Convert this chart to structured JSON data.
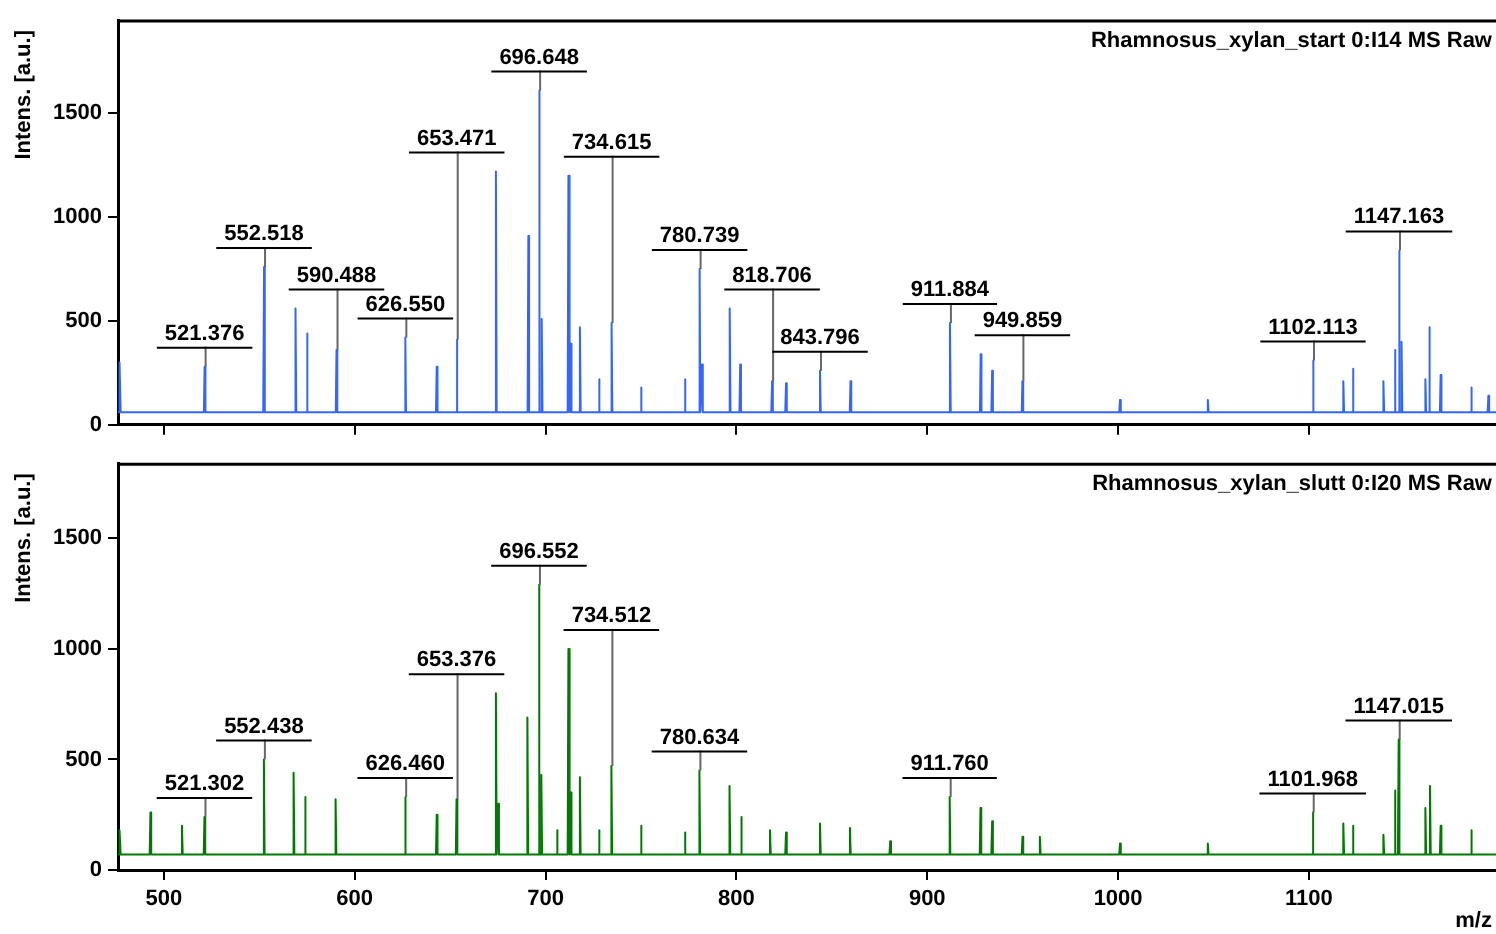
{
  "chart_data": [
    {
      "type": "line",
      "title": "Rhamnosus_xylan_start 0:I14 MS Raw",
      "ylabel": "Intens. [a.u.]",
      "series": [
        {
          "color": "#3366ff",
          "x": [
            476,
            476.6,
            477,
            477.4,
            521,
            521.376,
            521.8,
            552.1,
            552.518,
            552.9,
            568.6,
            569,
            569.4,
            574.6,
            575,
            575.4,
            590.1,
            590.488,
            590.9,
            626.2,
            626.55,
            626.9,
            642.6,
            643,
            643.4,
            653.1,
            653.471,
            653.9,
            673.6,
            674,
            674.4,
            690.6,
            691,
            691.4,
            696.3,
            696.648,
            697,
            697.7,
            698,
            698.4,
            711.6,
            712,
            712.4,
            712.8,
            713.2,
            713.6,
            717.6,
            718,
            718.4,
            727.6,
            728,
            728.4,
            734.2,
            734.615,
            735,
            749.6,
            750,
            750.4,
            772.6,
            773,
            773.4,
            780.4,
            780.739,
            781.1,
            781.6,
            782,
            782.4,
            796.1,
            796.5,
            796.9,
            801.6,
            802,
            802.4,
            818.3,
            818.706,
            819.1,
            825.6,
            826,
            826.4,
            843.4,
            843.796,
            844.2,
            859.4,
            859.8,
            860.2,
            911.5,
            911.884,
            912.3,
            927.6,
            928,
            928.4,
            933.6,
            934,
            934.4,
            949.5,
            949.859,
            950.3,
            1000.6,
            1001,
            1001.4,
            1046.6,
            1047,
            1047.4,
            1101.7,
            1102.113,
            1102.5,
            1117.6,
            1118,
            1118.4,
            1122.6,
            1123,
            1123.4,
            1138.6,
            1139,
            1139.4,
            1144.6,
            1145,
            1145.4,
            1146.8,
            1147.163,
            1147.6,
            1148.1,
            1148.5,
            1148.9,
            1160.6,
            1161,
            1161.4,
            1162.6,
            1163,
            1163.4,
            1168.6,
            1169,
            1169.4,
            1184.6,
            1185,
            1185.4,
            1193.6,
            1194,
            1194.4,
            1198
          ],
          "values": [
            60,
            60,
            300,
            60,
            60,
            280,
            60,
            60,
            760,
            60,
            60,
            560,
            60,
            60,
            440,
            60,
            60,
            360,
            60,
            60,
            420,
            60,
            60,
            280,
            60,
            60,
            410,
            60,
            60,
            1220,
            60,
            60,
            910,
            60,
            60,
            1610,
            60,
            60,
            510,
            60,
            60,
            1200,
            60,
            60,
            390,
            60,
            60,
            470,
            60,
            60,
            220,
            60,
            60,
            490,
            60,
            60,
            180,
            60,
            60,
            220,
            60,
            60,
            750,
            60,
            60,
            290,
            60,
            60,
            560,
            60,
            60,
            290,
            60,
            60,
            210,
            60,
            60,
            200,
            60,
            60,
            260,
            60,
            60,
            210,
            60,
            60,
            490,
            60,
            60,
            340,
            60,
            60,
            260,
            60,
            60,
            210,
            60,
            60,
            120,
            60,
            60,
            120,
            60,
            60,
            310,
            60,
            60,
            210,
            60,
            60,
            270,
            60,
            60,
            210,
            60,
            60,
            360,
            60,
            60,
            840,
            60,
            60,
            400,
            60,
            60,
            220,
            60,
            60,
            470,
            60,
            60,
            240,
            60,
            60,
            180,
            60,
            60,
            140,
            60,
            60
          ]
        }
      ],
      "xlim": [
        476,
        1198
      ],
      "xticks": [
        500,
        600,
        700,
        800,
        900,
        1000,
        1100
      ],
      "ylim": [
        0,
        1950
      ],
      "yticks": [
        0,
        500,
        1000,
        1500
      ],
      "tick_labels": "y",
      "grid": false,
      "legend": false,
      "marker": "none",
      "line_style": "solid",
      "annotations": [
        {
          "text": "521.376",
          "x": 521.376,
          "y": 280
        },
        {
          "text": "552.518",
          "x": 552.518,
          "y": 760
        },
        {
          "text": "590.488",
          "x": 590.488,
          "y": 360
        },
        {
          "text": "626.550",
          "x": 626.55,
          "y": 420
        },
        {
          "text": "653.471",
          "x": 653.471,
          "y": 410
        },
        {
          "text": "696.648",
          "x": 696.648,
          "y": 1610
        },
        {
          "text": "734.615",
          "x": 734.615,
          "y": 490
        },
        {
          "text": "780.739",
          "x": 780.739,
          "y": 750
        },
        {
          "text": "818.706",
          "x": 818.706,
          "y": 210
        },
        {
          "text": "843.796",
          "x": 843.796,
          "y": 260
        },
        {
          "text": "911.884",
          "x": 911.884,
          "y": 490
        },
        {
          "text": "949.859",
          "x": 949.859,
          "y": 210
        },
        {
          "text": "1102.113",
          "x": 1102.113,
          "y": 310
        },
        {
          "text": "1147.163",
          "x": 1147.163,
          "y": 840
        }
      ]
    },
    {
      "type": "line",
      "title": "Rhamnosus_xylan_slutt 0:I20 MS Raw",
      "ylabel": "Intens. [a.u.]",
      "xlabel": "m/z",
      "series": [
        {
          "color": "#007a00",
          "x": [
            476,
            476.6,
            477,
            477.4,
            492.6,
            493,
            493.4,
            509.1,
            509.5,
            509.9,
            520.9,
            521.302,
            521.7,
            552.0,
            552.438,
            552.8,
            567.6,
            568,
            568.4,
            573.6,
            574,
            574.4,
            589.6,
            590,
            590.4,
            626.1,
            626.46,
            626.8,
            642.6,
            643,
            643.4,
            653.0,
            653.376,
            653.8,
            673.6,
            674,
            674.4,
            674.8,
            675.2,
            675.6,
            690.1,
            690.5,
            690.9,
            696.2,
            696.552,
            696.9,
            697.4,
            697.8,
            698.2,
            705.6,
            706,
            706.4,
            711.6,
            712,
            712.4,
            712.8,
            713.2,
            713.6,
            717.6,
            718,
            718.4,
            727.6,
            728,
            728.4,
            734.1,
            734.512,
            734.9,
            749.6,
            750,
            750.4,
            772.6,
            773,
            773.4,
            780.2,
            780.634,
            781,
            796,
            796.4,
            796.8,
            802.1,
            802.5,
            802.9,
            817.2,
            817.6,
            818,
            825.6,
            826,
            826.4,
            843.4,
            843.8,
            844.2,
            859.1,
            859.5,
            859.9,
            880.2,
            880.6,
            881,
            911.4,
            911.76,
            912.1,
            927.5,
            927.9,
            928.3,
            933.6,
            934,
            934.4,
            949.5,
            949.9,
            950.3,
            958.6,
            959,
            959.4,
            1000.6,
            1001,
            1001.4,
            1046.6,
            1047,
            1047.4,
            1101.6,
            1101.968,
            1102.4,
            1117.6,
            1118,
            1118.4,
            1122.6,
            1123,
            1123.4,
            1138.6,
            1139,
            1139.4,
            1144.6,
            1145,
            1145.4,
            1146.6,
            1147.015,
            1147.4,
            1160.6,
            1161,
            1161.4,
            1163,
            1163.4,
            1163.8,
            1168.6,
            1169,
            1169.4,
            1184.6,
            1185,
            1185.4,
            1198
          ],
          "values": [
            70,
            70,
            180,
            70,
            70,
            260,
            70,
            70,
            200,
            70,
            70,
            240,
            70,
            70,
            500,
            70,
            70,
            440,
            70,
            70,
            330,
            70,
            70,
            320,
            70,
            70,
            330,
            70,
            70,
            250,
            70,
            70,
            320,
            70,
            70,
            800,
            70,
            70,
            300,
            70,
            70,
            690,
            70,
            70,
            1290,
            70,
            70,
            430,
            70,
            70,
            180,
            70,
            70,
            1000,
            70,
            70,
            350,
            70,
            70,
            420,
            70,
            70,
            180,
            70,
            70,
            470,
            70,
            70,
            200,
            70,
            70,
            170,
            70,
            70,
            450,
            70,
            70,
            380,
            70,
            70,
            240,
            70,
            70,
            180,
            70,
            70,
            170,
            70,
            70,
            210,
            70,
            70,
            190,
            70,
            70,
            130,
            70,
            70,
            330,
            70,
            70,
            280,
            70,
            70,
            220,
            70,
            70,
            150,
            70,
            70,
            150,
            70,
            70,
            120,
            70,
            70,
            120,
            70,
            70,
            260,
            70,
            70,
            210,
            70,
            70,
            200,
            70,
            70,
            160,
            70,
            70,
            360,
            70,
            70,
            590,
            70,
            70,
            280,
            70,
            70,
            380,
            70,
            70,
            200,
            70,
            70,
            180,
            70,
            70
          ]
        }
      ],
      "xlim": [
        476,
        1198
      ],
      "xticks": [
        500,
        600,
        700,
        800,
        900,
        1000,
        1100
      ],
      "ylim": [
        0,
        1840
      ],
      "yticks": [
        0,
        500,
        1000,
        1500
      ],
      "grid": false,
      "legend": false,
      "marker": "none",
      "line_style": "solid",
      "annotations": [
        {
          "text": "521.302",
          "x": 521.302,
          "y": 240
        },
        {
          "text": "552.438",
          "x": 552.438,
          "y": 500
        },
        {
          "text": "626.460",
          "x": 626.46,
          "y": 330
        },
        {
          "text": "653.376",
          "x": 653.376,
          "y": 320
        },
        {
          "text": "696.552",
          "x": 696.552,
          "y": 1290
        },
        {
          "text": "734.512",
          "x": 734.512,
          "y": 470
        },
        {
          "text": "780.634",
          "x": 780.634,
          "y": 450
        },
        {
          "text": "911.760",
          "x": 911.76,
          "y": 330
        },
        {
          "text": "1101.968",
          "x": 1101.968,
          "y": 260
        },
        {
          "text": "1147.015",
          "x": 1147.015,
          "y": 590
        }
      ]
    }
  ]
}
